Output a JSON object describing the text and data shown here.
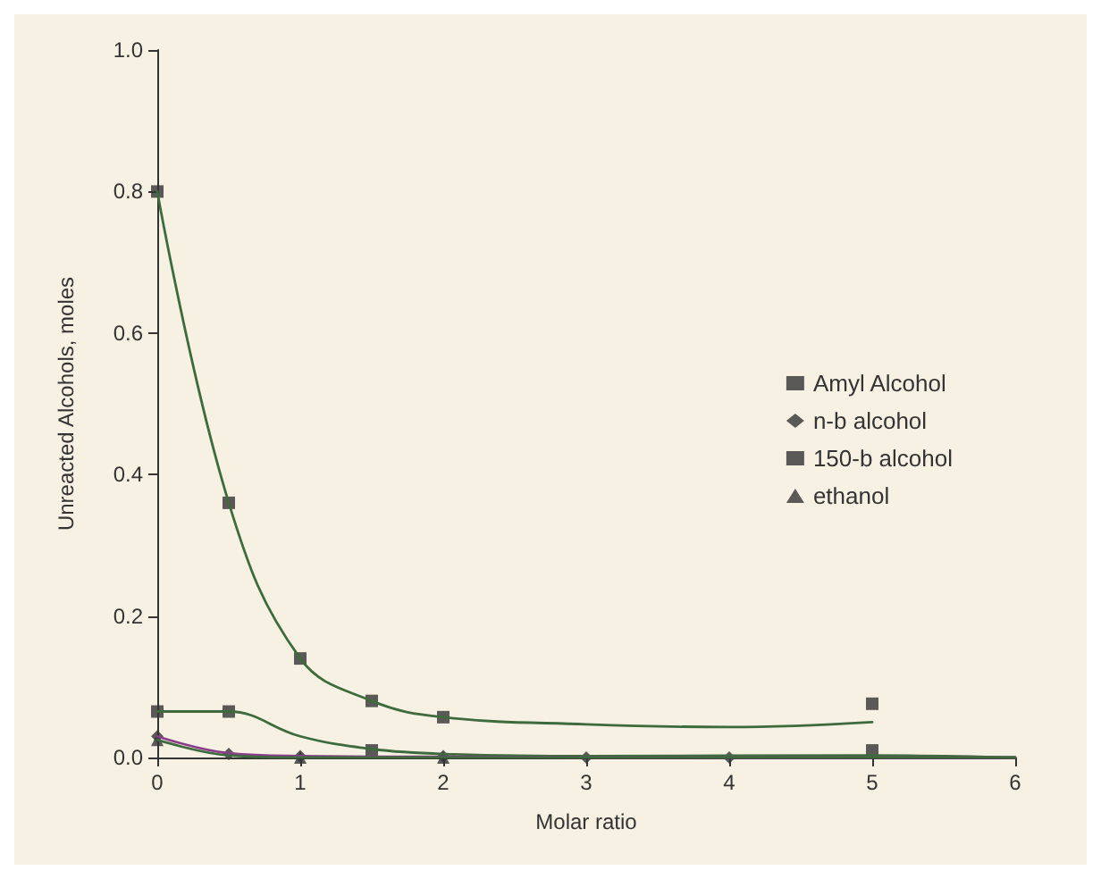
{
  "chart_data": {
    "type": "scatter",
    "xlabel": "Molar ratio",
    "ylabel": "Unreacted Alcohols, moles",
    "xlim": [
      0,
      6
    ],
    "xticks": [
      0,
      1,
      2,
      3,
      4,
      5,
      6
    ],
    "ylim": [
      0,
      1
    ],
    "yticks": [
      {
        "value": 0,
        "label": "0.0"
      },
      {
        "value": 0.2,
        "label": "0.2"
      },
      {
        "value": 0.4,
        "label": "0.4"
      },
      {
        "value": 0.6,
        "label": "0.6"
      },
      {
        "value": 0.8,
        "label": "0.8"
      },
      {
        "value": 1,
        "label": "1.0"
      }
    ],
    "grid": false,
    "legend": "right",
    "series": [
      {
        "name": "Amyl Alcohol",
        "color": "#333333",
        "marker": "square",
        "x": [
          0,
          0.5,
          1,
          1.5,
          2,
          5
        ],
        "values": [
          0.8,
          0.36,
          0.14,
          0.08,
          0.057,
          0.076
        ]
      },
      {
        "name": "n-b alcohol",
        "color": "#333333",
        "marker": "diamond",
        "x": [
          0,
          0.5,
          1,
          2,
          3,
          4
        ],
        "values": [
          0.03,
          0.005,
          0.002,
          0.002,
          0,
          0
        ]
      },
      {
        "name": "150-b alcohol",
        "color": "#333333",
        "marker": "square",
        "x": [
          0,
          0.5,
          1.5,
          2,
          5
        ],
        "values": [
          0.065,
          0.065,
          0.01,
          null,
          0.01
        ]
      },
      {
        "name": "ethanol",
        "color": "#333333",
        "marker": "triangle",
        "x": [
          0,
          0.5,
          1,
          2
        ],
        "values": [
          0.025,
          null,
          0,
          0
        ]
      },
      {
        "type": "line",
        "color": "#3d6b3d",
        "marker": "none",
        "x": [
          0,
          0.5,
          1,
          1.5,
          2,
          3,
          4,
          5
        ],
        "values": [
          0.8,
          0.36,
          0.14,
          0.08,
          0.057,
          0.047,
          0.043,
          0.05
        ]
      },
      {
        "type": "line",
        "color": "#3d6b3d",
        "marker": "none",
        "x": [
          0,
          0.5,
          1,
          1.5,
          2,
          3,
          5,
          6
        ],
        "values": [
          0.065,
          0.065,
          0.03,
          0.012,
          0.005,
          0.002,
          0.003,
          0
        ]
      },
      {
        "type": "line",
        "color": "#8a3d8a",
        "marker": "none",
        "x": [
          0,
          0.5,
          1,
          2,
          4,
          6
        ],
        "values": [
          0.03,
          0.006,
          0.002,
          0.001,
          0,
          0
        ]
      },
      {
        "type": "line",
        "color": "#3d6b3d",
        "marker": "none",
        "x": [
          0,
          0.5,
          1,
          2,
          6
        ],
        "values": [
          0.025,
          0.003,
          0,
          0,
          0
        ]
      }
    ]
  }
}
